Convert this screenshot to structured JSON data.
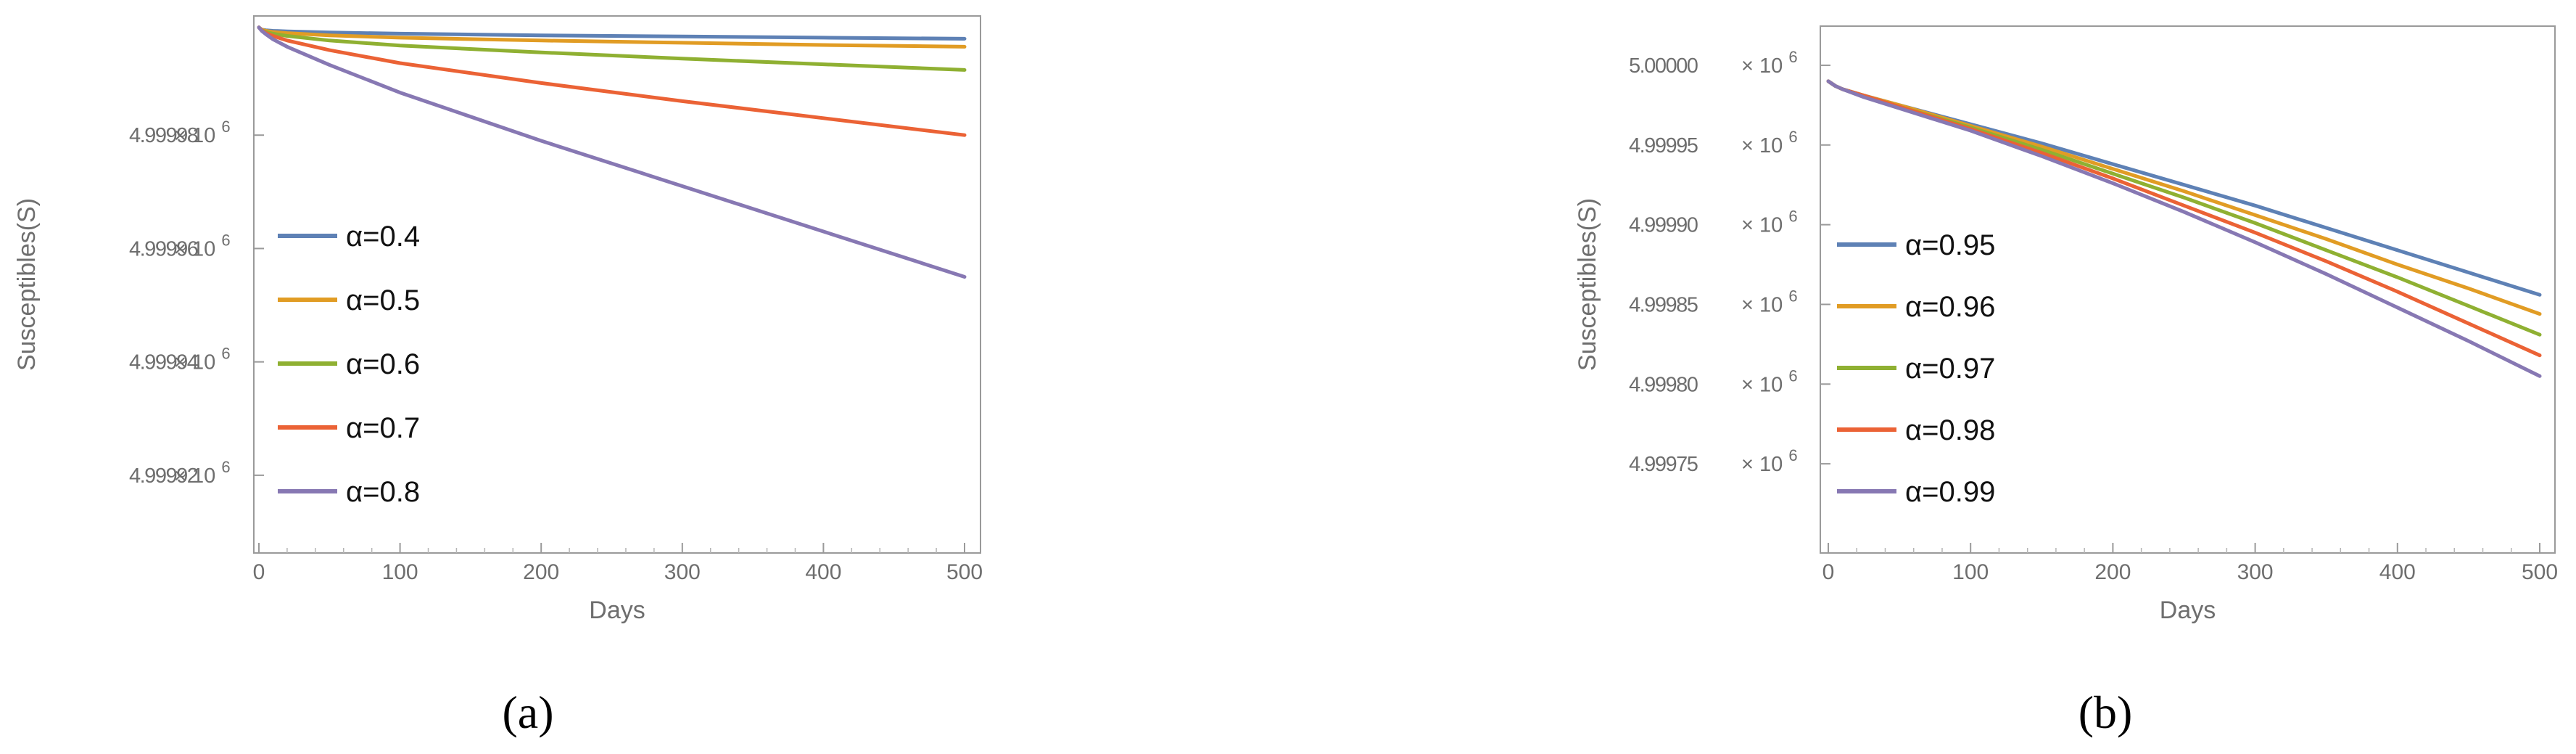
{
  "chart_data": [
    {
      "type": "line",
      "caption": "(a)",
      "xlabel": "Days",
      "ylabel": "Susceptibles(S)",
      "xlim": [
        0,
        500
      ],
      "ylim": [
        4999910.0,
        5000000.0
      ],
      "xticks": [
        0,
        100,
        200,
        300,
        400,
        500
      ],
      "xtick_labels": [
        "0",
        "100",
        "200",
        "300",
        "400",
        "500"
      ],
      "yticks": [
        4999980.0,
        4999960.0,
        4999940.0,
        4999920.0
      ],
      "ytick_labels": [
        "4.99998",
        "4.99996",
        "4.99994",
        "4.99992"
      ],
      "ytick_multiplier": "× 10",
      "ytick_exponent": "6",
      "legend_position": "left",
      "series": [
        {
          "name": "α=0.4",
          "color": "#5E81B5",
          "x": [
            0,
            2,
            5,
            10,
            20,
            50,
            100,
            200,
            300,
            400,
            500
          ],
          "y": [
            4999999.0,
            4999998.6,
            4999998.5,
            4999998.4,
            4999998.3,
            4999998.1,
            4999997.9,
            4999997.6,
            4999997.4,
            4999997.2,
            4999997.0
          ]
        },
        {
          "name": "α=0.5",
          "color": "#E19C24",
          "x": [
            0,
            2,
            5,
            10,
            20,
            50,
            100,
            200,
            300,
            400,
            500
          ],
          "y": [
            4999999.0,
            4999998.6,
            4999998.4,
            4999998.2,
            4999998.0,
            4999997.6,
            4999997.2,
            4999996.7,
            4999996.3,
            4999995.9,
            4999995.6
          ]
        },
        {
          "name": "α=0.6",
          "color": "#8FB032",
          "x": [
            0,
            2,
            5,
            10,
            20,
            50,
            100,
            200,
            300,
            400,
            500
          ],
          "y": [
            4999999.0,
            4999998.5,
            4999998.2,
            4999997.9,
            4999997.5,
            4999996.7,
            4999995.8,
            4999994.6,
            4999993.5,
            4999992.5,
            4999991.5
          ]
        },
        {
          "name": "α=0.7",
          "color": "#EB6235",
          "x": [
            0,
            2,
            5,
            10,
            20,
            50,
            100,
            200,
            300,
            400,
            500
          ],
          "y": [
            4999999.0,
            4999998.5,
            4999998.0,
            4999997.5,
            4999996.7,
            4999995.0,
            4999992.7,
            4999989.2,
            4999986.0,
            4999983.0,
            4999980.0
          ]
        },
        {
          "name": "α=0.8",
          "color": "#8778B3",
          "x": [
            0,
            2,
            5,
            10,
            20,
            50,
            100,
            200,
            300,
            400,
            500
          ],
          "y": [
            4999999.0,
            4999998.4,
            4999997.8,
            4999996.9,
            4999995.6,
            4999992.4,
            4999987.5,
            4999979.0,
            4999971.0,
            4999963.0,
            4999955.0
          ]
        }
      ]
    },
    {
      "type": "line",
      "caption": "(b)",
      "xlabel": "Days",
      "ylabel": "Susceptibles(S)",
      "xlim": [
        0,
        500
      ],
      "ylim": [
        4999720.0,
        5000010.0
      ],
      "xticks": [
        0,
        100,
        200,
        300,
        400,
        500
      ],
      "xtick_labels": [
        "0",
        "100",
        "200",
        "300",
        "400",
        "500"
      ],
      "yticks": [
        5000000.0,
        4999950.0,
        4999900.0,
        4999850.0,
        4999800.0,
        4999750.0
      ],
      "ytick_labels": [
        "5.00000",
        "4.99995",
        "4.99990",
        "4.99985",
        "4.99980",
        "4.99975"
      ],
      "ytick_multiplier": "× 10",
      "ytick_exponent": "6",
      "legend_position": "left",
      "series": [
        {
          "name": "α=0.95",
          "color": "#5E81B5",
          "x": [
            0,
            5,
            10,
            25,
            50,
            100,
            150,
            200,
            250,
            300,
            350,
            400,
            450,
            500
          ],
          "y": [
            4999990,
            4999987,
            4999985,
            4999981,
            4999975,
            4999963,
            4999951,
            4999938,
            4999925,
            4999912,
            4999898,
            4999884,
            4999870,
            4999856
          ]
        },
        {
          "name": "α=0.96",
          "color": "#E19C24",
          "x": [
            0,
            5,
            10,
            25,
            50,
            100,
            150,
            200,
            250,
            300,
            350,
            400,
            450,
            500
          ],
          "y": [
            4999990,
            4999987,
            4999985,
            4999981,
            4999975,
            4999962,
            4999949,
            4999935,
            4999921,
            4999906,
            4999891,
            4999875,
            4999860,
            4999844
          ]
        },
        {
          "name": "α=0.97",
          "color": "#8FB032",
          "x": [
            0,
            5,
            10,
            25,
            50,
            100,
            150,
            200,
            250,
            300,
            350,
            400,
            450,
            500
          ],
          "y": [
            4999990,
            4999987,
            4999985,
            4999981,
            4999974,
            4999961,
            4999947,
            4999932,
            4999917,
            4999901,
            4999884,
            4999867,
            4999849,
            4999831
          ]
        },
        {
          "name": "α=0.98",
          "color": "#EB6235",
          "x": [
            0,
            5,
            10,
            25,
            50,
            100,
            150,
            200,
            250,
            300,
            350,
            400,
            450,
            500
          ],
          "y": [
            4999990,
            4999987,
            4999985,
            4999981,
            4999974,
            4999960,
            4999945,
            4999929,
            4999912,
            4999895,
            4999877,
            4999858,
            4999838,
            4999818
          ]
        },
        {
          "name": "α=0.99",
          "color": "#8778B3",
          "x": [
            0,
            5,
            10,
            25,
            50,
            100,
            150,
            200,
            250,
            300,
            350,
            400,
            450,
            500
          ],
          "y": [
            4999990,
            4999987,
            4999985,
            4999980,
            4999973,
            4999959,
            4999943,
            4999926,
            4999908,
            4999889,
            4999869,
            4999848,
            4999827,
            4999805
          ]
        }
      ]
    }
  ]
}
